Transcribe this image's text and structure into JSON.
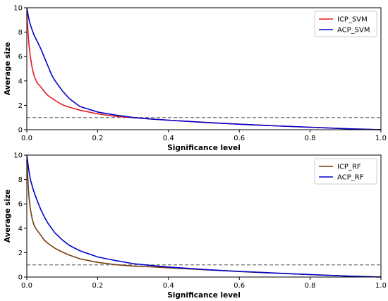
{
  "chart_data": [
    {
      "type": "line",
      "title": "",
      "xlabel": "Significance level",
      "ylabel": "Average size",
      "xlim": [
        0,
        1
      ],
      "ylim": [
        0,
        10
      ],
      "xticks": [
        0.0,
        0.2,
        0.4,
        0.6,
        0.8,
        1.0
      ],
      "xtick_labels": [
        "0.0",
        "0.2",
        "0.4",
        "0.6",
        "0.8",
        "1.0"
      ],
      "yticks": [
        0,
        2,
        4,
        6,
        8,
        10
      ],
      "ytick_labels": [
        "0",
        "2",
        "4",
        "6",
        "8",
        "10"
      ],
      "grid": false,
      "legend_position": "top-right",
      "reference_line": {
        "y": 1,
        "style": "dashed",
        "color": "#808080"
      },
      "series": [
        {
          "name": "ICP_SVM",
          "color": "#e41a1c",
          "x": [
            0.0,
            0.003,
            0.006,
            0.01,
            0.015,
            0.02,
            0.025,
            0.03,
            0.04,
            0.05,
            0.06,
            0.07,
            0.08,
            0.1,
            0.12,
            0.15,
            0.2,
            0.25,
            0.3,
            0.35,
            0.4,
            0.5,
            0.6,
            0.7,
            0.8,
            0.9,
            1.0
          ],
          "y": [
            9.5,
            8.2,
            7.0,
            6.0,
            5.1,
            4.5,
            4.1,
            3.8,
            3.5,
            3.1,
            2.8,
            2.6,
            2.4,
            2.05,
            1.85,
            1.6,
            1.3,
            1.1,
            0.98,
            0.88,
            0.78,
            0.6,
            0.45,
            0.32,
            0.2,
            0.08,
            0.0
          ]
        },
        {
          "name": "ACP_SVM",
          "color": "#0000cc",
          "x": [
            0.0,
            0.005,
            0.01,
            0.02,
            0.03,
            0.04,
            0.05,
            0.06,
            0.07,
            0.08,
            0.1,
            0.12,
            0.15,
            0.2,
            0.25,
            0.3,
            0.35,
            0.4,
            0.5,
            0.6,
            0.7,
            0.8,
            0.9,
            1.0
          ],
          "y": [
            10.0,
            9.2,
            8.6,
            7.8,
            7.2,
            6.6,
            5.9,
            5.2,
            4.5,
            4.0,
            3.2,
            2.55,
            1.9,
            1.45,
            1.2,
            1.0,
            0.88,
            0.78,
            0.6,
            0.45,
            0.32,
            0.2,
            0.08,
            0.0
          ]
        }
      ]
    },
    {
      "type": "line",
      "title": "",
      "xlabel": "Significance level",
      "ylabel": "Average size",
      "xlim": [
        0,
        1
      ],
      "ylim": [
        0,
        10
      ],
      "xticks": [
        0.0,
        0.2,
        0.4,
        0.6,
        0.8,
        1.0
      ],
      "xtick_labels": [
        "0.0",
        "0.2",
        "0.4",
        "0.6",
        "0.8",
        "1.0"
      ],
      "yticks": [
        0,
        2,
        4,
        6,
        8,
        10
      ],
      "ytick_labels": [
        "0",
        "2",
        "4",
        "6",
        "8",
        "10"
      ],
      "grid": false,
      "legend_position": "top-right",
      "reference_line": {
        "y": 1,
        "style": "dashed",
        "color": "#808080"
      },
      "series": [
        {
          "name": "ICP_RF",
          "color": "#7a3b0a",
          "x": [
            0.0,
            0.003,
            0.006,
            0.01,
            0.015,
            0.02,
            0.025,
            0.03,
            0.04,
            0.05,
            0.06,
            0.07,
            0.08,
            0.1,
            0.12,
            0.15,
            0.2,
            0.25,
            0.3,
            0.35,
            0.4,
            0.5,
            0.6,
            0.7,
            0.8,
            0.9,
            1.0
          ],
          "y": [
            9.6,
            8.0,
            6.6,
            5.6,
            4.8,
            4.3,
            4.0,
            3.8,
            3.4,
            3.0,
            2.75,
            2.55,
            2.35,
            2.05,
            1.8,
            1.5,
            1.2,
            1.02,
            0.9,
            0.84,
            0.76,
            0.6,
            0.45,
            0.32,
            0.2,
            0.08,
            0.0
          ]
        },
        {
          "name": "ACP_RF",
          "color": "#0000cc",
          "x": [
            0.0,
            0.005,
            0.01,
            0.02,
            0.03,
            0.04,
            0.05,
            0.06,
            0.07,
            0.08,
            0.1,
            0.12,
            0.15,
            0.2,
            0.25,
            0.3,
            0.35,
            0.4,
            0.5,
            0.6,
            0.7,
            0.8,
            0.9,
            1.0
          ],
          "y": [
            10.0,
            8.9,
            8.0,
            7.0,
            6.2,
            5.5,
            4.9,
            4.4,
            4.0,
            3.6,
            3.05,
            2.6,
            2.15,
            1.65,
            1.35,
            1.1,
            0.95,
            0.82,
            0.62,
            0.46,
            0.33,
            0.2,
            0.08,
            0.0
          ]
        }
      ]
    }
  ]
}
